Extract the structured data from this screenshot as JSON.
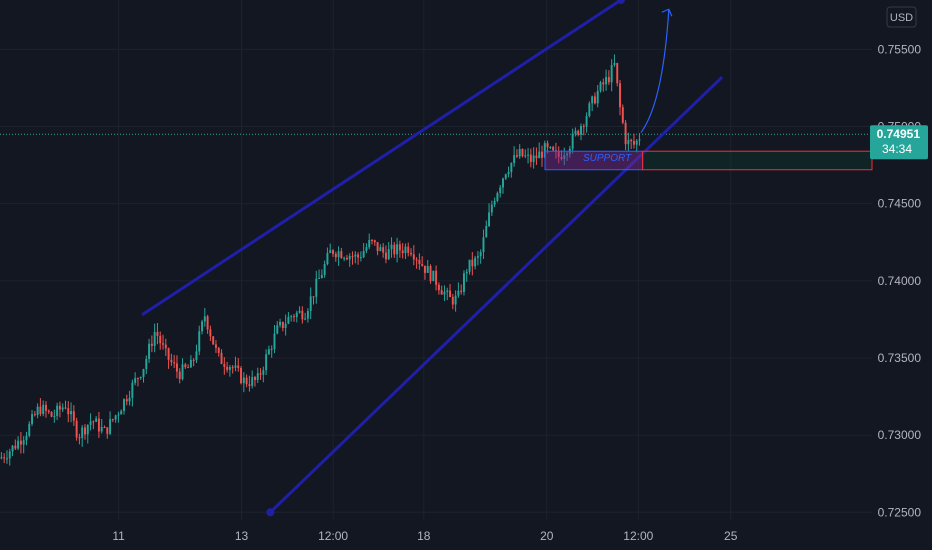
{
  "chart_data": {
    "type": "candlestick",
    "currency": "USD",
    "y_ticks": [
      0.725,
      0.73,
      0.735,
      0.74,
      0.745,
      0.75,
      0.755
    ],
    "y_tick_labels": [
      "0.72500",
      "0.73000",
      "0.73500",
      "0.74000",
      "0.74500",
      "0.75000",
      "0.75500"
    ],
    "ylim": [
      0.7245,
      0.7582
    ],
    "x_ticks": [
      {
        "label": "11",
        "pos": 0.136
      },
      {
        "label": "13",
        "pos": 0.277
      },
      {
        "label": "12:00",
        "pos": 0.382
      },
      {
        "label": "18",
        "pos": 0.486
      },
      {
        "label": "20",
        "pos": 0.627
      },
      {
        "label": "12:00",
        "pos": 0.732
      },
      {
        "label": "25",
        "pos": 0.838
      }
    ],
    "series_path": [
      [
        0.0,
        0.7285
      ],
      [
        0.015,
        0.7292
      ],
      [
        0.03,
        0.7302
      ],
      [
        0.045,
        0.7318
      ],
      [
        0.06,
        0.7312
      ],
      [
        0.075,
        0.732
      ],
      [
        0.09,
        0.73
      ],
      [
        0.105,
        0.731
      ],
      [
        0.12,
        0.7302
      ],
      [
        0.135,
        0.7315
      ],
      [
        0.15,
        0.733
      ],
      [
        0.165,
        0.7345
      ],
      [
        0.178,
        0.7368
      ],
      [
        0.19,
        0.7352
      ],
      [
        0.205,
        0.734
      ],
      [
        0.22,
        0.7345
      ],
      [
        0.235,
        0.7378
      ],
      [
        0.25,
        0.735
      ],
      [
        0.265,
        0.7345
      ],
      [
        0.28,
        0.7335
      ],
      [
        0.295,
        0.7335
      ],
      [
        0.305,
        0.735
      ],
      [
        0.318,
        0.7368
      ],
      [
        0.335,
        0.7378
      ],
      [
        0.35,
        0.738
      ],
      [
        0.365,
        0.74
      ],
      [
        0.38,
        0.742
      ],
      [
        0.395,
        0.7418
      ],
      [
        0.41,
        0.7415
      ],
      [
        0.425,
        0.7425
      ],
      [
        0.44,
        0.7418
      ],
      [
        0.455,
        0.742
      ],
      [
        0.47,
        0.7422
      ],
      [
        0.485,
        0.741
      ],
      [
        0.5,
        0.74
      ],
      [
        0.515,
        0.7388
      ],
      [
        0.525,
        0.7388
      ],
      [
        0.535,
        0.7408
      ],
      [
        0.55,
        0.7415
      ],
      [
        0.565,
        0.7452
      ],
      [
        0.58,
        0.7472
      ],
      [
        0.595,
        0.7482
      ],
      [
        0.61,
        0.7478
      ],
      [
        0.625,
        0.7485
      ],
      [
        0.64,
        0.748
      ],
      [
        0.655,
        0.749
      ],
      [
        0.67,
        0.7505
      ],
      [
        0.685,
        0.7522
      ],
      [
        0.698,
        0.7532
      ],
      [
        0.705,
        0.754
      ],
      [
        0.71,
        0.7515
      ],
      [
        0.718,
        0.749
      ],
      [
        0.728,
        0.7488
      ],
      [
        0.735,
        0.7495
      ]
    ],
    "channel": {
      "upper": [
        [
          0.163,
          0.7378
        ],
        [
          0.712,
          0.7582
        ]
      ],
      "lower": [
        [
          0.31,
          0.725
        ],
        [
          0.828,
          0.7532
        ]
      ]
    },
    "projection_arrow": [
      [
        0.735,
        0.7496
      ],
      [
        0.767,
        0.7576
      ]
    ],
    "support_zone": {
      "top": 0.7484,
      "bottom": 0.7472,
      "from": 0.625,
      "to": 0.737
    },
    "support_label": "SUPPORT",
    "red_box": {
      "top": 0.7484,
      "bottom": 0.7472,
      "from": 0.737
    },
    "last_price": 0.7495,
    "last_price_label": "0.74951",
    "countdown": "34:34",
    "colors": {
      "up": "#26a69a",
      "down": "#ef5350",
      "channel": "#1f1fa8",
      "arrow": "#2962ff",
      "support": "#2962ff",
      "support_fill": "#7b2a95",
      "last_price_bg": "#26a69a",
      "red_box": "#ff2a2a",
      "grid": "#1e222d",
      "axis_text": "#b2b5be"
    }
  }
}
